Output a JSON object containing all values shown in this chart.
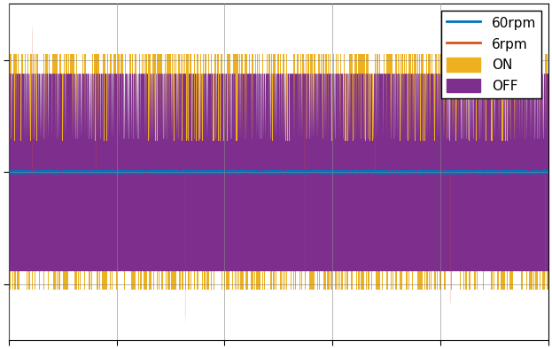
{
  "legend_labels": [
    "60rpm",
    "6rpm",
    "ON",
    "OFF"
  ],
  "color_60rpm": "#0072BD",
  "color_6rpm": "#D95319",
  "color_ON": "#EDB120",
  "color_OFF": "#7E2F8E",
  "background_color": "#ffffff",
  "figsize": [
    6.23,
    3.94
  ],
  "dpi": 100,
  "n_points": 3000,
  "seed": 1,
  "ylim": [
    -1.5,
    1.5
  ],
  "xlim": [
    0,
    1
  ],
  "grid_xticks": [
    0.0,
    0.2,
    0.4,
    0.6,
    0.8,
    1.0
  ],
  "grid_yticks": [
    -1.0,
    0.0,
    1.0
  ]
}
